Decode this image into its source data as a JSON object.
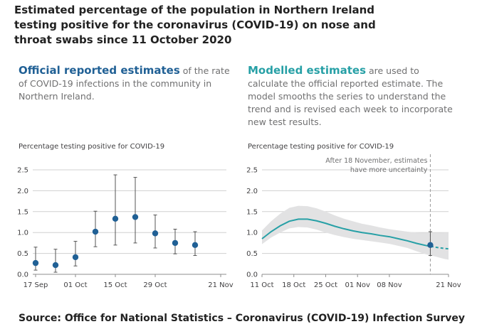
{
  "title": "Estimated percentage of the population in Northern Ireland testing positive for the coronavirus (COVID-19) on nose and throat swabs since 11 October 2020",
  "left_panel": {
    "lead": "Official reported estimates",
    "text": " of the rate of COVID-19 infections in the community in Northern Ireland."
  },
  "right_panel": {
    "lead": "Modelled estimates",
    "text": " are used to calculate the official reported estimate. The model smooths the series to understand the trend and is revised each week to incorporate new test results."
  },
  "source": "Source: Office for National Statistics – Coronavirus (COVID-19) Infection Survey",
  "colors": {
    "official": "#206095",
    "modelled": "#27a0a6",
    "band": "#e2e2e3",
    "grid": "#d0d0d0",
    "errorbar": "#555555"
  },
  "chart_data": [
    {
      "type": "scatter",
      "name": "official-reported-estimates",
      "ylabel": "Percentage testing positive for COVID-19",
      "ylim": [
        0,
        2.5
      ],
      "yticks": [
        "0.0",
        "0.5",
        "1.0",
        "1.5",
        "2.0",
        "2.5"
      ],
      "xlabels": [
        "17 Sep",
        "01 Oct",
        "15 Oct",
        "29 Oct",
        "21 Nov"
      ],
      "x_label_days": [
        0,
        14,
        28,
        42,
        65
      ],
      "x_range_days": [
        -1,
        67
      ],
      "points": [
        {
          "day": 0,
          "value": 0.27,
          "lower": 0.1,
          "upper": 0.65
        },
        {
          "day": 7,
          "value": 0.22,
          "lower": 0.05,
          "upper": 0.6
        },
        {
          "day": 14,
          "value": 0.41,
          "lower": 0.2,
          "upper": 0.79
        },
        {
          "day": 21,
          "value": 1.02,
          "lower": 0.66,
          "upper": 1.51
        },
        {
          "day": 28,
          "value": 1.33,
          "lower": 0.7,
          "upper": 2.38
        },
        {
          "day": 35,
          "value": 1.37,
          "lower": 0.75,
          "upper": 2.32
        },
        {
          "day": 42,
          "value": 0.98,
          "lower": 0.63,
          "upper": 1.42
        },
        {
          "day": 49,
          "value": 0.75,
          "lower": 0.49,
          "upper": 1.08
        },
        {
          "day": 56,
          "value": 0.7,
          "lower": 0.45,
          "upper": 1.02
        }
      ]
    },
    {
      "type": "line",
      "name": "modelled-estimates",
      "ylabel": "Percentage testing positive for COVID-19",
      "ylim": [
        0,
        2.5
      ],
      "yticks": [
        "0.0",
        "0.5",
        "1.0",
        "1.5",
        "2.0",
        "2.5"
      ],
      "xlabels": [
        "11 Oct",
        "18 Oct",
        "25 Oct",
        "01 Nov",
        "08 Nov",
        "21 Nov"
      ],
      "x_label_days": [
        0,
        7,
        14,
        21,
        28,
        41
      ],
      "x_range_days": [
        0,
        41
      ],
      "x": [
        0,
        2,
        4,
        6,
        8,
        10,
        12,
        14,
        16,
        18,
        20,
        22,
        24,
        26,
        28,
        30,
        32,
        34,
        36,
        38,
        40,
        41
      ],
      "y": [
        0.85,
        1.02,
        1.16,
        1.27,
        1.32,
        1.32,
        1.28,
        1.22,
        1.15,
        1.09,
        1.04,
        1.0,
        0.97,
        0.93,
        0.9,
        0.85,
        0.8,
        0.74,
        0.69,
        0.65,
        0.62,
        0.61
      ],
      "lower": [
        0.72,
        0.88,
        1.0,
        1.1,
        1.13,
        1.12,
        1.07,
        1.0,
        0.94,
        0.89,
        0.85,
        0.82,
        0.79,
        0.76,
        0.73,
        0.68,
        0.63,
        0.55,
        0.48,
        0.43,
        0.37,
        0.35
      ],
      "upper": [
        1.05,
        1.27,
        1.45,
        1.59,
        1.64,
        1.63,
        1.58,
        1.5,
        1.41,
        1.33,
        1.27,
        1.21,
        1.17,
        1.12,
        1.08,
        1.05,
        1.02,
        1.0,
        0.99,
        0.99,
        1.0,
        1.0
      ],
      "highlight": {
        "day": 37,
        "value": 0.7,
        "lower": 0.45,
        "upper": 1.02
      },
      "dashed_from_day": 37,
      "vline_day": 37,
      "annotation": [
        "After 18 November, estimates",
        "have more uncertainty"
      ]
    }
  ]
}
